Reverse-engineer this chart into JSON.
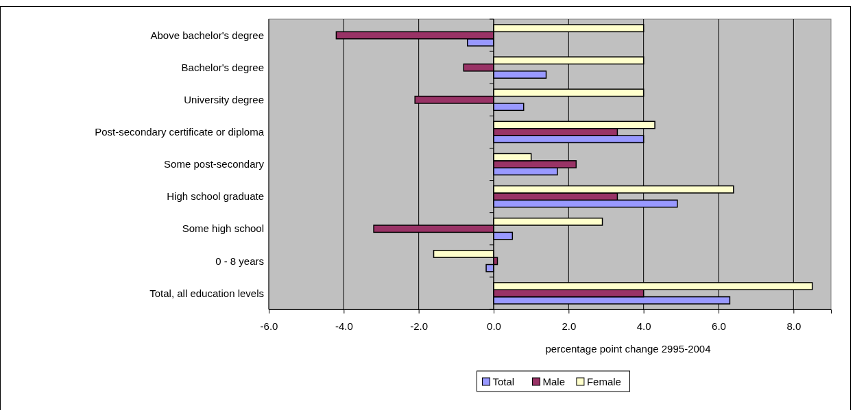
{
  "chart_data": {
    "type": "bar",
    "orientation": "horizontal",
    "xlabel": "percentage point change 2995-2004",
    "categories": [
      "Above bachelor's degree",
      "Bachelor's degree",
      "University degree",
      "Post-secondary certificate or diploma",
      "Some post-secondary",
      "High school graduate",
      "Some high school",
      "0 - 8  years",
      "Total, all education levels"
    ],
    "series": [
      {
        "name": "Total",
        "color": "#9999ff",
        "values": [
          -0.7,
          1.4,
          0.8,
          4.0,
          1.7,
          4.9,
          0.5,
          -0.2,
          6.3
        ]
      },
      {
        "name": "Male",
        "color": "#993366",
        "values": [
          -4.2,
          -0.8,
          -2.1,
          3.3,
          2.2,
          3.3,
          -3.2,
          0.1,
          4.0
        ]
      },
      {
        "name": "Female",
        "color": "#ffffcc",
        "values": [
          4.0,
          4.0,
          4.0,
          4.3,
          1.0,
          6.4,
          2.9,
          -1.6,
          8.5
        ]
      }
    ],
    "xlim": [
      -6,
      9
    ],
    "xticks": [
      {
        "value": -6,
        "label": "-6.0"
      },
      {
        "value": -4,
        "label": "-4.0"
      },
      {
        "value": -2,
        "label": "-2.0"
      },
      {
        "value": 0,
        "label": "0.0"
      },
      {
        "value": 2,
        "label": "2.0"
      },
      {
        "value": 4,
        "label": "4.0"
      },
      {
        "value": 6,
        "label": "6.0"
      },
      {
        "value": 8,
        "label": "8.0"
      }
    ],
    "grid": "x",
    "legend": "bottom"
  }
}
